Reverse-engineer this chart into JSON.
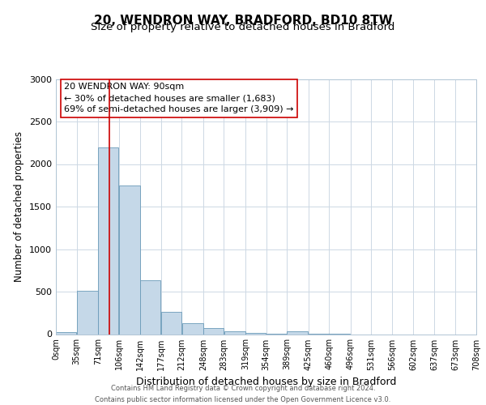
{
  "title1": "20, WENDRON WAY, BRADFORD, BD10 8TW",
  "title2": "Size of property relative to detached houses in Bradford",
  "xlabel": "Distribution of detached houses by size in Bradford",
  "ylabel": "Number of detached properties",
  "bar_color": "#c5d8e8",
  "bar_edge_color": "#6a9ab8",
  "bins": [
    0,
    35,
    71,
    106,
    142,
    177,
    212,
    248,
    283,
    319,
    354,
    389,
    425,
    460,
    496,
    531,
    566,
    602,
    637,
    673,
    708
  ],
  "values": [
    25,
    510,
    2195,
    1750,
    635,
    265,
    130,
    70,
    30,
    15,
    5,
    35,
    5,
    5,
    0,
    0,
    0,
    0,
    0,
    0
  ],
  "tick_labels": [
    "0sqm",
    "35sqm",
    "71sqm",
    "106sqm",
    "142sqm",
    "177sqm",
    "212sqm",
    "248sqm",
    "283sqm",
    "319sqm",
    "354sqm",
    "389sqm",
    "425sqm",
    "460sqm",
    "496sqm",
    "531sqm",
    "566sqm",
    "602sqm",
    "637sqm",
    "673sqm",
    "708sqm"
  ],
  "ylim": [
    0,
    3000
  ],
  "yticks": [
    0,
    500,
    1000,
    1500,
    2000,
    2500,
    3000
  ],
  "vline_x": 90,
  "vline_color": "#cc0000",
  "annotation_line1": "20 WENDRON WAY: 90sqm",
  "annotation_line2": "← 30% of detached houses are smaller (1,683)",
  "annotation_line3": "69% of semi-detached houses are larger (3,909) →",
  "footer_line1": "Contains HM Land Registry data © Crown copyright and database right 2024.",
  "footer_line2": "Contains public sector information licensed under the Open Government Licence v3.0.",
  "bg_color": "#ffffff",
  "grid_color": "#cdd8e4",
  "title1_fontsize": 11,
  "title2_fontsize": 9.5,
  "tick_fontsize": 7,
  "ylabel_fontsize": 8.5,
  "xlabel_fontsize": 9,
  "annotation_fontsize": 8,
  "footer_fontsize": 6
}
